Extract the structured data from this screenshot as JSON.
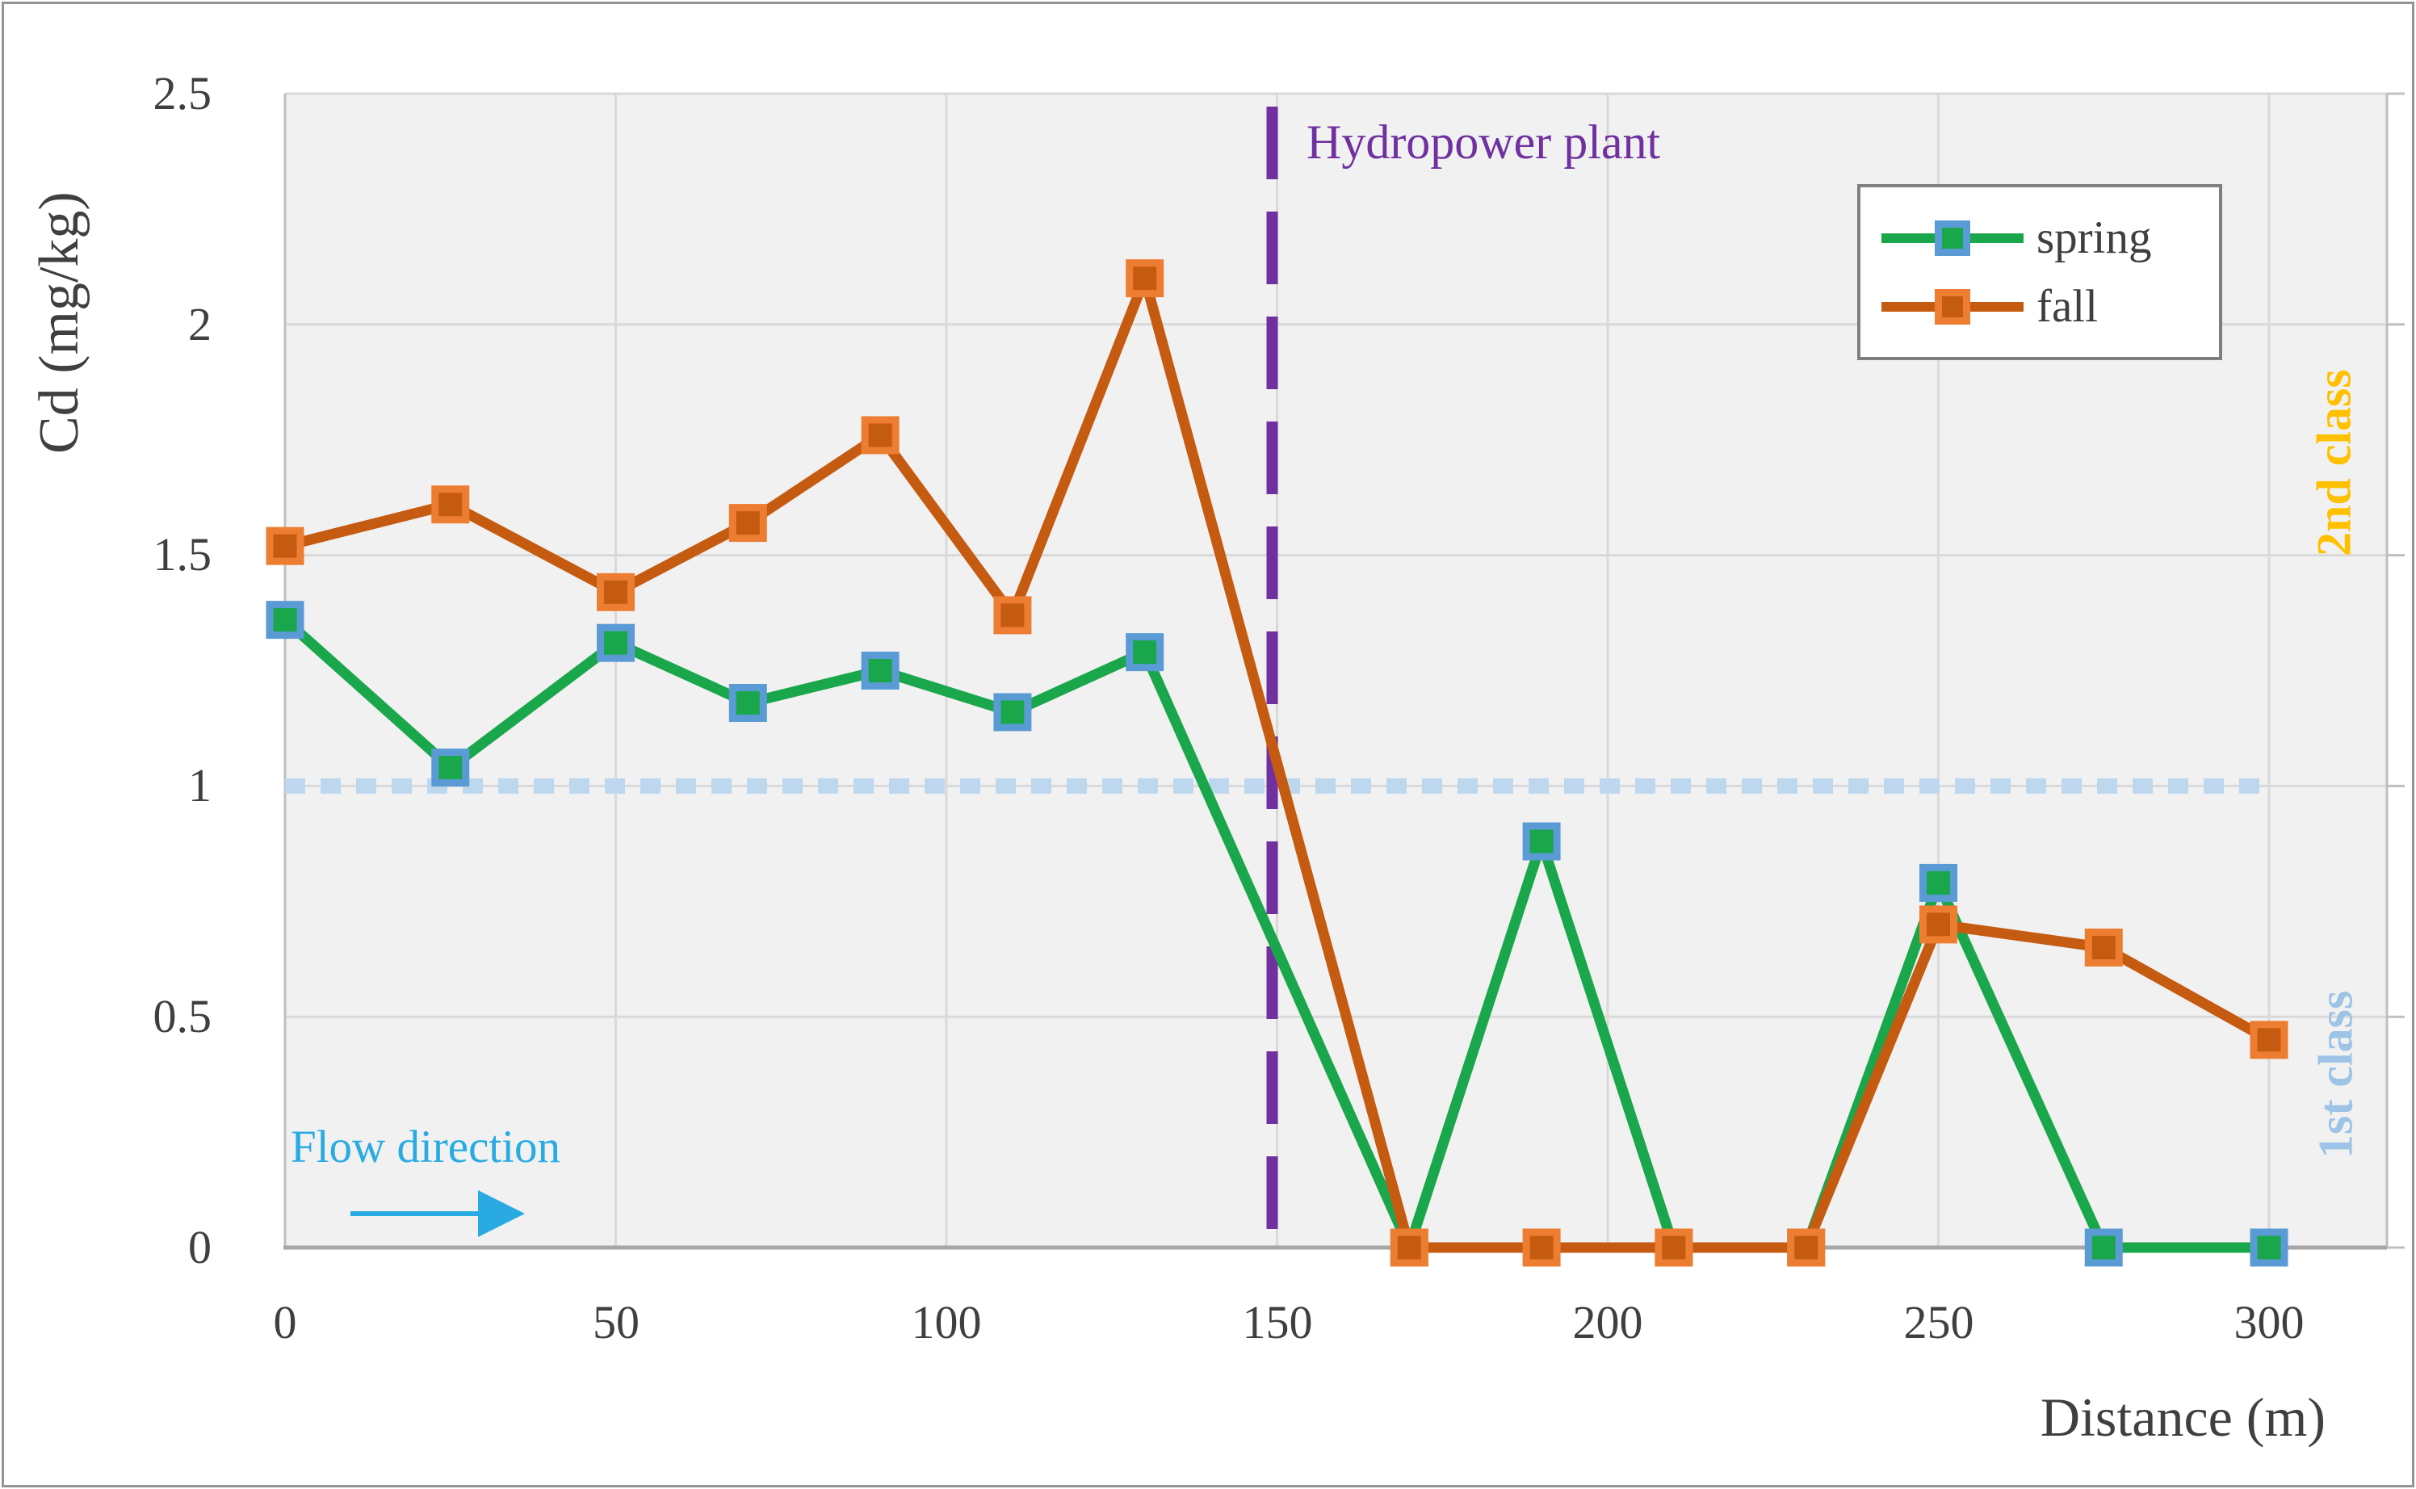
{
  "chart_data": {
    "type": "line",
    "title": "",
    "xlabel": "Distance (m)",
    "ylabel": "Cd (mg/kg)",
    "x": [
      0,
      25,
      50,
      70,
      90,
      110,
      130,
      170,
      190,
      210,
      230,
      250,
      275,
      300
    ],
    "series": [
      {
        "name": "spring",
        "color": "#1AA64B",
        "marker_border": "#5B9BD5",
        "values": [
          1.36,
          1.04,
          1.31,
          1.18,
          1.25,
          1.16,
          1.29,
          0,
          0.88,
          0,
          0,
          0.79,
          0,
          0
        ]
      },
      {
        "name": "fall",
        "color": "#C55A11",
        "marker_border": "#ED7D31",
        "values": [
          1.52,
          1.61,
          1.42,
          1.57,
          1.76,
          1.37,
          2.1,
          0,
          0,
          0,
          0,
          0.7,
          0.65,
          0.45
        ]
      }
    ],
    "xlim": [
      0,
      300
    ],
    "ylim": [
      0,
      2.5
    ],
    "xtick_labels": [
      "0",
      "50",
      "100",
      "150",
      "200",
      "250",
      "300"
    ],
    "ytick_labels": [
      "2.5",
      "2",
      "1.5",
      "1",
      "0.5",
      "0"
    ],
    "grid": true,
    "legend_position": "top-right",
    "reference_lines": {
      "hydropower": {
        "x": 150,
        "label": "Hydropower plant",
        "color": "#7030A0",
        "style": "long-dash"
      },
      "first_class": {
        "y": 1.0,
        "label": "1st class",
        "line_color": "#BDD7EE",
        "label_color": "#9DC3E6",
        "style": "dotted"
      },
      "second_class": {
        "label": "2nd class",
        "label_color": "#FFC000"
      }
    },
    "annotations": {
      "flow": {
        "label": "Flow direction",
        "color": "#29ABE2"
      }
    },
    "colors": {
      "plot_bg": "#F1F1F1",
      "grid": "#D9D9D9",
      "axis": "#BFBFBF",
      "axis_bottom": "#A6A6A6",
      "text": "#3F3F3F",
      "legend_border": "#7F7F7F",
      "figure_border": "#949494"
    }
  }
}
